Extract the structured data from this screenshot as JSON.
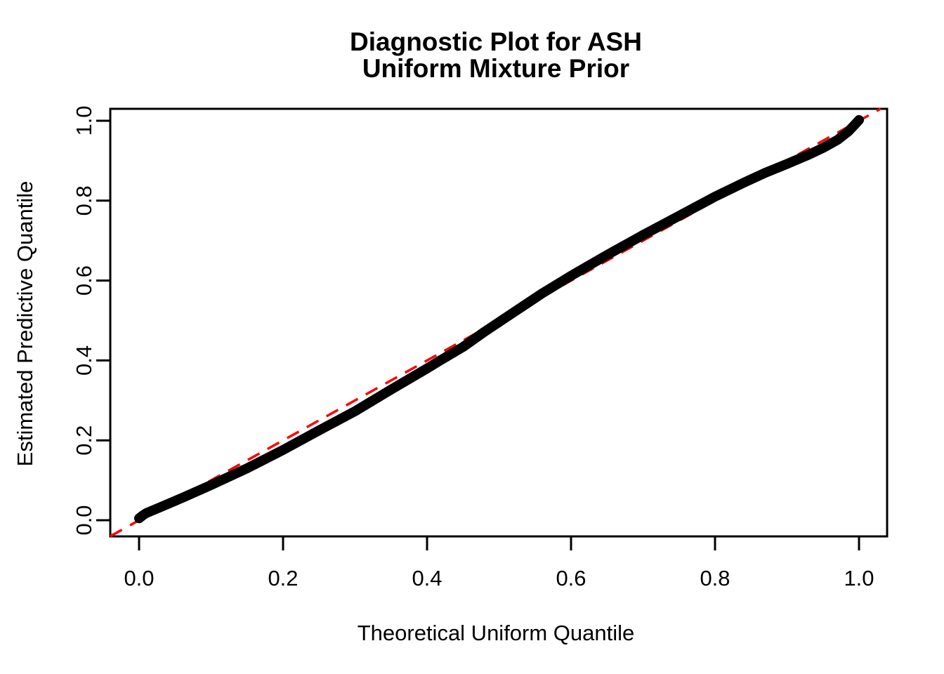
{
  "page": {
    "background_color": "#ffffff",
    "foreground_color": "#000000",
    "accent_color": "#ff0000"
  },
  "chart_data": {
    "type": "scatter",
    "title_line1": "Diagnostic Plot for ASH",
    "title_line2": "Uniform Mixture Prior",
    "xlabel": "Theoretical Uniform Quantile",
    "ylabel": "Estimated Predictive Quantile",
    "xlim": [
      -0.04,
      1.04
    ],
    "ylim": [
      -0.042,
      1.03
    ],
    "grid": false,
    "legend": "none",
    "x_ticks": {
      "values": [
        0.0,
        0.2,
        0.4,
        0.6,
        0.8,
        1.0
      ],
      "labels": [
        "0.0",
        "0.2",
        "0.4",
        "0.6",
        "0.8",
        "1.0"
      ]
    },
    "y_ticks": {
      "values": [
        0.0,
        0.2,
        0.4,
        0.6,
        0.8,
        1.0
      ],
      "labels": [
        "0.0",
        "0.2",
        "0.4",
        "0.6",
        "0.8",
        "1.0"
      ]
    },
    "series": [
      {
        "name": "estimated-predictive-quantiles",
        "style": "thick-point-curve",
        "color": "#000000",
        "points": [
          [
            0.0,
            0.005
          ],
          [
            0.005,
            0.012
          ],
          [
            0.01,
            0.018
          ],
          [
            0.03,
            0.033
          ],
          [
            0.06,
            0.056
          ],
          [
            0.1,
            0.088
          ],
          [
            0.15,
            0.13
          ],
          [
            0.2,
            0.176
          ],
          [
            0.25,
            0.225
          ],
          [
            0.3,
            0.273
          ],
          [
            0.35,
            0.327
          ],
          [
            0.4,
            0.38
          ],
          [
            0.42,
            0.402
          ],
          [
            0.45,
            0.434
          ],
          [
            0.48,
            0.472
          ],
          [
            0.52,
            0.52
          ],
          [
            0.56,
            0.568
          ],
          [
            0.6,
            0.612
          ],
          [
            0.65,
            0.664
          ],
          [
            0.7,
            0.714
          ],
          [
            0.75,
            0.762
          ],
          [
            0.8,
            0.81
          ],
          [
            0.84,
            0.845
          ],
          [
            0.87,
            0.87
          ],
          [
            0.9,
            0.892
          ],
          [
            0.93,
            0.915
          ],
          [
            0.95,
            0.932
          ],
          [
            0.97,
            0.952
          ],
          [
            0.985,
            0.973
          ],
          [
            0.995,
            0.992
          ],
          [
            1.0,
            1.002
          ]
        ]
      },
      {
        "name": "identity-reference-line",
        "style": "dashed-line",
        "color": "#ff0000",
        "points": [
          [
            -0.04,
            -0.04
          ],
          [
            1.03,
            1.03
          ]
        ]
      }
    ]
  }
}
